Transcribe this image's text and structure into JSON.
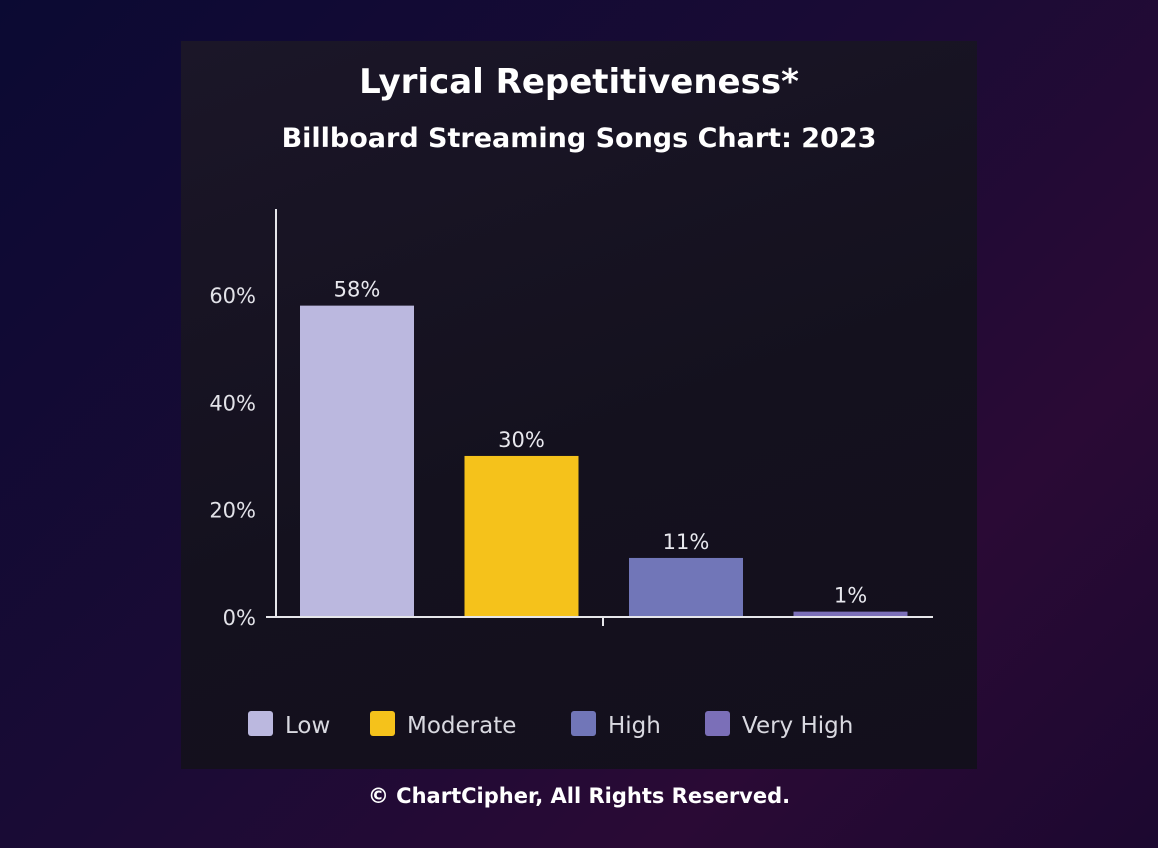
{
  "chart_data": {
    "type": "bar",
    "title": "Lyrical Repetitiveness*",
    "subtitle": "Billboard Streaming Songs Chart: 2023",
    "categories": [
      "Low",
      "Moderate",
      "High",
      "Very High"
    ],
    "values": [
      58,
      30,
      11,
      1
    ],
    "data_labels": [
      "58%",
      "30%",
      "11%",
      "1%"
    ],
    "colors": [
      "#bbb8df",
      "#f5c21b",
      "#7176b8",
      "#7b6fb8"
    ],
    "y_ticks": [
      {
        "value": 0,
        "label": "0%"
      },
      {
        "value": 20,
        "label": "20%"
      },
      {
        "value": 40,
        "label": "40%"
      },
      {
        "value": 60,
        "label": "60%"
      }
    ],
    "ylim": [
      0,
      76
    ],
    "grid": false,
    "legend": {
      "position": "bottom",
      "entries": [
        "Low",
        "Moderate",
        "High",
        "Very High"
      ]
    }
  },
  "footer": {
    "copyright": "© ChartCipher, All Rights Reserved."
  }
}
